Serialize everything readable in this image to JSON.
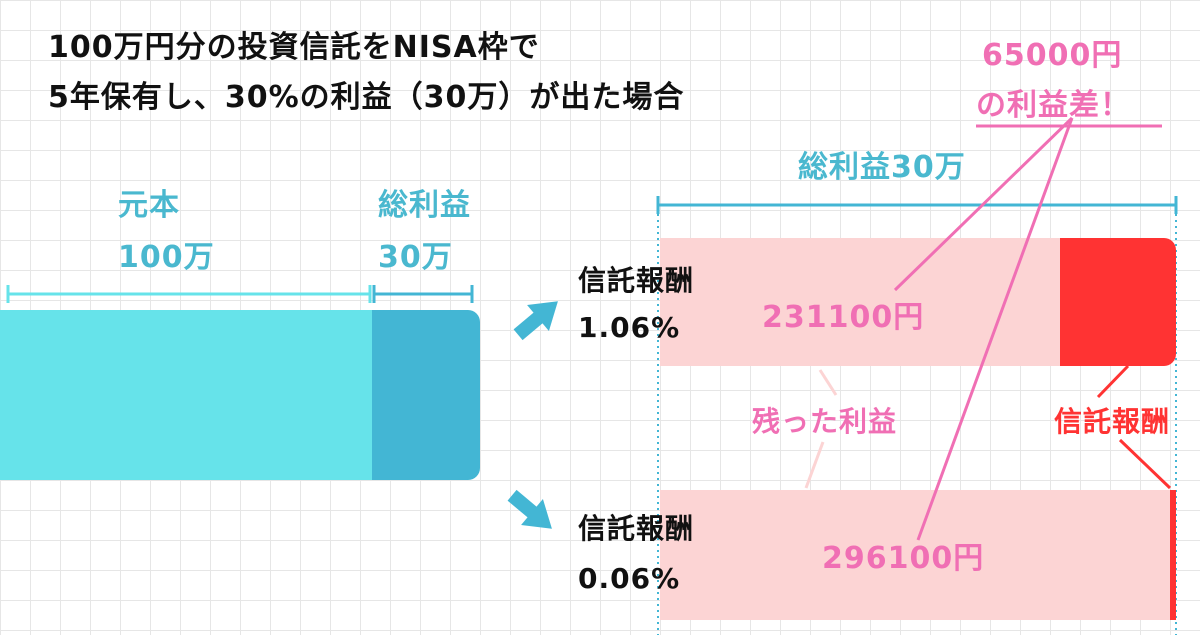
{
  "title": {
    "line1": "100万円分の投資信託をNISA枠で",
    "line2": "5年保有し、30%の利益（30万）が出た場合"
  },
  "left": {
    "principal_label": "元本",
    "principal_value": "100万",
    "profit_label": "総利益",
    "profit_value": "30万",
    "principal_amount": 1000000,
    "profit_amount": 300000
  },
  "right": {
    "total_profit_label": "総利益30万",
    "difference_line1": "65000円",
    "difference_line2": "の利益差！",
    "remaining_profit_label": "残った利益",
    "fee_label": "信託報酬",
    "scenarios": [
      {
        "fee_title": "信託報酬",
        "fee_rate": "1.06%",
        "remaining_profit": "231100円",
        "remaining_fraction": 0.77
      },
      {
        "fee_title": "信託報酬",
        "fee_rate": "0.06%",
        "remaining_profit": "296100円",
        "remaining_fraction": 0.987
      }
    ]
  },
  "colors": {
    "principal": "#66e3ea",
    "profit_dark": "#43b6d4",
    "teal_text": "#4ab8cf",
    "pink_text": "#f06fb4",
    "remaining_bar": "#fcd4d4",
    "fee_bar": "#ff3333",
    "grid": "#e6e6e6"
  }
}
